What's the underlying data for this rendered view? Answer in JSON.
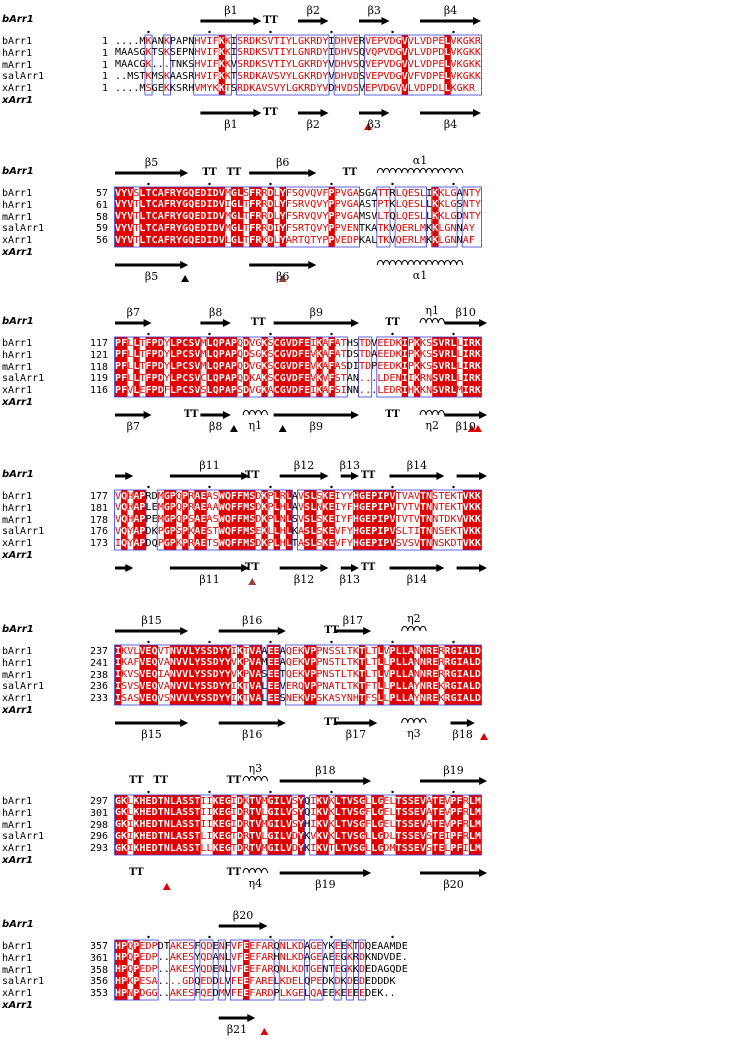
{
  "colors": {
    "identical_bg": "#e00000",
    "similar_text": "#e00000",
    "box_border": "#3a3ad8",
    "arrow": "#000000",
    "tri_red": "#e00000",
    "tri_brown": "#a0403a",
    "tri_black": "#000000"
  },
  "blocks": [
    {
      "start_col": 5,
      "top_header": "bArr1",
      "bottom_header": "xArr1",
      "rows": [
        {
          "name": "bArr1",
          "start": "1",
          "seq": "....MKANKPAPNHVIFKKISRDKSVTIYLGKRDYIDHVERVEPVDGVVLVDPELVKGKR"
        },
        {
          "name": "hArr1",
          "start": "1",
          "seq": "MAASGKTSKSEPNHVIFKKISRDKSVTIYLGNRDYIDHVSQVQPVDGVVLVDPDLVKGKK"
        },
        {
          "name": "mArr1",
          "start": "1",
          "seq": "MAACGK...TNKSHVIFKKVSRDKSVTIYLGKRDYVDHVSQVEPVDGVVLVDPELVKGKK"
        },
        {
          "name": "salArr1",
          "start": "1",
          "seq": "..MSTKMSKAASRHVIFKKTSRDKAVSVYLGKRDYVDHVDSVEPVDGVVFVDPELVKGKK"
        },
        {
          "name": "xArr1",
          "start": "1",
          "seq": "....MSGEKKSRHVMYKKTSRDKAVSVYLGKRDYVDHVDSVEPVDGVVLVDPDLLKGKR"
        }
      ],
      "top_ss": [
        {
          "label": "β1",
          "type": "arrow",
          "from": 14,
          "to": 24
        },
        {
          "label": "TT",
          "type": "turn",
          "at": 25
        },
        {
          "label": "β2",
          "type": "arrow",
          "from": 30,
          "to": 35
        },
        {
          "label": "β3",
          "type": "arrow",
          "from": 40,
          "to": 45
        },
        {
          "label": "β4",
          "type": "arrow",
          "from": 50,
          "to": 60
        }
      ],
      "bottom_ss": [
        {
          "label": "β1",
          "type": "arrow",
          "from": 14,
          "to": 24
        },
        {
          "label": "TT",
          "type": "turn",
          "at": 25
        },
        {
          "label": "β2",
          "type": "arrow",
          "from": 30,
          "to": 35
        },
        {
          "label": "β3",
          "type": "arrow",
          "from": 40,
          "to": 45
        },
        {
          "label": "β4",
          "type": "arrow",
          "from": 50,
          "to": 60
        }
      ],
      "markers": [
        {
          "at": 41,
          "color": "red"
        }
      ]
    },
    {
      "start_col": 0,
      "top_header": "bArr1",
      "bottom_header": "xArr1",
      "rows": [
        {
          "name": "bArr1",
          "start": "57",
          "seq": "VYVSLTCAFRYGQEDIDVMGLSFRRDLYFSQVQVFPPVGASGATTRLQESLIKKLGANTY"
        },
        {
          "name": "hArr1",
          "start": "61",
          "seq": "VYVTLTCAFRYGQEDIDVIGLTFRRDLYFSRVQVYPPVGAASTPTKLQESLLKKLGSNTY"
        },
        {
          "name": "mArr1",
          "start": "58",
          "seq": "VYVTLTCAFRYGQEDIDVMGLTFRRDLYFSRVQVYPPVGAMSVLTQLQESLLKKLGDNTY"
        },
        {
          "name": "salArr1",
          "start": "59",
          "seq": "VYVTLTCAFRYGQEDIDVMGLTFRRDIYFSRTQVYPPVENTKATKVQERLMKKLGNNAY"
        },
        {
          "name": "xArr1",
          "start": "56",
          "seq": "VYVTLTCAFRYGQEDIDVLGLTFRKDLYARTQTYPPVEDPKALTKVQERLMKKLGNNAF"
        }
      ],
      "top_ss": [
        {
          "label": "β5",
          "type": "arrow",
          "from": 0,
          "to": 12
        },
        {
          "label": "TT",
          "type": "turn",
          "at": 15
        },
        {
          "label": "TT",
          "type": "turn",
          "at": 19
        },
        {
          "label": "β6",
          "type": "arrow",
          "from": 22,
          "to": 33
        },
        {
          "label": "TT",
          "type": "turn",
          "at": 38
        },
        {
          "label": "α1",
          "type": "helix",
          "from": 43,
          "to": 57
        }
      ],
      "bottom_ss": [
        {
          "label": "β5",
          "type": "arrow",
          "from": 0,
          "to": 12
        },
        {
          "label": "β6",
          "type": "arrow",
          "from": 22,
          "to": 33
        },
        {
          "label": "α1",
          "type": "helix",
          "from": 43,
          "to": 57
        }
      ],
      "markers": [
        {
          "at": 11,
          "color": "black"
        },
        {
          "at": 27,
          "color": "brown"
        }
      ]
    },
    {
      "start_col": 0,
      "top_header": "bArr1",
      "bottom_header": "xArr1",
      "rows": [
        {
          "name": "bArr1",
          "start": "117",
          "seq": "PFLLTFPDYLPCSVMLQPAPQDVGKSCGVDFEIKAFATHSTDVEEDKIPKKSSVRLLIRK"
        },
        {
          "name": "hArr1",
          "start": "121",
          "seq": "PFLLTFPDYLPCSVMLQPAPQDSGKSCGVDFEVKAFATDSTDAEEDKIPKKSSVRLLIRK"
        },
        {
          "name": "mArr1",
          "start": "118",
          "seq": "PFLLTFPDYLPCSVMLQPAPQDVGKSCGVDFEVKAFASDITDPEEDKIPKKSSVRLLIRK"
        },
        {
          "name": "salArr1",
          "start": "119",
          "seq": "PFLLTFPDYLPCSVCLQPAPQDKAKSCGVDFEVKVFSTAN...LDENIIKRNSVRLLIRK"
        },
        {
          "name": "xArr1",
          "start": "116",
          "seq": "PFVLEFPDFLPCSVSLQPAPSDVGKACGVDFEIKAFSINN...LEDRIHKKNSVRLMIRK"
        }
      ],
      "top_ss": [
        {
          "label": "β7",
          "type": "arrow",
          "from": 0,
          "to": 6
        },
        {
          "label": "β8",
          "type": "arrow",
          "from": 14,
          "to": 19
        },
        {
          "label": "TT",
          "type": "turn",
          "at": 23
        },
        {
          "label": "β9",
          "type": "arrow",
          "from": 26,
          "to": 40
        },
        {
          "label": "TT",
          "type": "turn",
          "at": 45
        },
        {
          "label": "η1",
          "type": "helix",
          "from": 50,
          "to": 54
        },
        {
          "label": "β10",
          "type": "arrow",
          "from": 54,
          "to": 61
        }
      ],
      "bottom_ss": [
        {
          "label": "β7",
          "type": "arrow",
          "from": 0,
          "to": 6
        },
        {
          "label": "TT",
          "type": "turn",
          "at": 12
        },
        {
          "label": "β8",
          "type": "arrow",
          "from": 14,
          "to": 19
        },
        {
          "label": "η1",
          "type": "helix",
          "from": 21,
          "to": 25
        },
        {
          "label": "β9",
          "type": "arrow",
          "from": 26,
          "to": 40
        },
        {
          "label": "TT",
          "type": "turn",
          "at": 45
        },
        {
          "label": "η2",
          "type": "helix",
          "from": 50,
          "to": 54
        },
        {
          "label": "β10",
          "type": "arrow",
          "from": 54,
          "to": 61
        }
      ],
      "markers": [
        {
          "at": 19,
          "color": "black"
        },
        {
          "at": 27,
          "color": "black"
        },
        {
          "at": 58,
          "color": "red"
        },
        {
          "at": 59,
          "color": "red"
        }
      ]
    },
    {
      "start_col": 0,
      "top_header": "bArr1",
      "bottom_header": "xArr1",
      "rows": [
        {
          "name": "bArr1",
          "start": "177",
          "seq": "VQHAPRDMGPQPRAEASWQFFMSDKPLRLAVSLSKEIYYHGEPIPVTVAVTNSTEKTVKK"
        },
        {
          "name": "hArr1",
          "start": "181",
          "seq": "VQHAPLEMGPQPRAEAAWQFFMSDKPLHLAVSLNKEIYFHGEPIPVTVTVTNNTEKTVKK"
        },
        {
          "name": "mArr1",
          "start": "178",
          "seq": "VQHAPPEMGPQPSAEASWQFFMSDKPLNLSVSLSKEIYFHGEPIPVTVTVTNNTDKVVKK"
        },
        {
          "name": "salArr1",
          "start": "176",
          "seq": "VQYAPDKPGPSPKAESTWQFFMSEKLLHLKASLSKEVFYHGEPIPVSLTITNNSEKTVKK"
        },
        {
          "name": "xArr1",
          "start": "173",
          "seq": "IQYAPDQPGPKPRAETSWQFFMSDKPLHLTASLSKEVFYHGEPIPVSVSVTNNSKDTVKK"
        }
      ],
      "top_ss": [
        {
          "label": "",
          "type": "arrow",
          "from": 0,
          "to": 3
        },
        {
          "label": "β11",
          "type": "arrow",
          "from": 9,
          "to": 22
        },
        {
          "label": "TT",
          "type": "turn",
          "at": 22
        },
        {
          "label": "β12",
          "type": "arrow",
          "from": 27,
          "to": 35
        },
        {
          "label": "β13",
          "type": "arrow",
          "from": 37,
          "to": 40
        },
        {
          "label": "TT",
          "type": "turn",
          "at": 41
        },
        {
          "label": "β14",
          "type": "arrow",
          "from": 45,
          "to": 54
        },
        {
          "label": "",
          "type": "arrow",
          "from": 56,
          "to": 61
        }
      ],
      "bottom_ss": [
        {
          "label": "",
          "type": "arrow",
          "from": 0,
          "to": 3
        },
        {
          "label": "β11",
          "type": "arrow",
          "from": 9,
          "to": 22
        },
        {
          "label": "TT",
          "type": "turn",
          "at": 22
        },
        {
          "label": "β12",
          "type": "arrow",
          "from": 27,
          "to": 35
        },
        {
          "label": "β13",
          "type": "arrow",
          "from": 37,
          "to": 40
        },
        {
          "label": "TT",
          "type": "turn",
          "at": 41
        },
        {
          "label": "β14",
          "type": "arrow",
          "from": 45,
          "to": 54
        },
        {
          "label": "",
          "type": "arrow",
          "from": 56,
          "to": 61
        }
      ],
      "markers": [
        {
          "at": 22,
          "color": "brown"
        }
      ]
    },
    {
      "start_col": 0,
      "top_header": "bArr1",
      "bottom_header": "xArr1",
      "rows": [
        {
          "name": "bArr1",
          "start": "237",
          "seq": "IKVLVEQVTNVVLYSSDYYIKTVAAEEAQEKVPPNSSLTKTLTLVPLLANNRERRGIALD"
        },
        {
          "name": "hArr1",
          "start": "241",
          "seq": "IKAFVEQVANVVLYSSDYYVKPVAMEEAQEKVPPNSTLTKTLTLLPLLANNRERRGIALD"
        },
        {
          "name": "mArr1",
          "start": "238",
          "seq": "IKVSVEQIANVVLYSSDYYVKPVASEETQEKVPPNSTLTKTLTLVPLLANNRERRGIALD"
        },
        {
          "name": "salArr1",
          "start": "236",
          "seq": "ISVSVEQVANVVLYSSDYYIKTVALEEVERQVPPNATLTKTFTLLPLLAYNREKRGIALD"
        },
        {
          "name": "xArr1",
          "start": "233",
          "seq": "ISASVEQVSNVVLYSSDYYIKTVALEESNEKVPSKASYNHTFSLLPLLAYNREKRGIALD"
        }
      ],
      "top_ss": [
        {
          "label": "β15",
          "type": "arrow",
          "from": 0,
          "to": 12
        },
        {
          "label": "β16",
          "type": "arrow",
          "from": 17,
          "to": 28
        },
        {
          "label": "TT",
          "type": "turn",
          "at": 35
        },
        {
          "label": "β17",
          "type": "arrow",
          "from": 36,
          "to": 42
        },
        {
          "label": "η2",
          "type": "helix",
          "from": 47,
          "to": 51
        }
      ],
      "bottom_ss": [
        {
          "label": "β15",
          "type": "arrow",
          "from": 0,
          "to": 12
        },
        {
          "label": "β16",
          "type": "arrow",
          "from": 17,
          "to": 28
        },
        {
          "label": "TT",
          "type": "turn",
          "at": 35
        },
        {
          "label": "β17",
          "type": "arrow",
          "from": 36,
          "to": 43
        },
        {
          "label": "η3",
          "type": "helix",
          "from": 47,
          "to": 51
        },
        {
          "label": "β18",
          "type": "arrow",
          "from": 55,
          "to": 59
        }
      ],
      "markers": [
        {
          "at": 60,
          "color": "red"
        }
      ]
    },
    {
      "start_col": 0,
      "top_header": "",
      "bottom_header": "xArr1",
      "rows": [
        {
          "name": "bArr1",
          "start": "297",
          "seq": "GKLKHEDTNLASSTIIKEGIDKTVMGILVSYQIKVKLTVSGLLGELTSSEVATEVPFRLM"
        },
        {
          "name": "hArr1",
          "start": "301",
          "seq": "GKLKHEDTNLASSTIIKEGIDRTVLGILVSYQIKVKLTVSGFLGELTSSEVATEVPFRLM"
        },
        {
          "name": "mArr1",
          "start": "298",
          "seq": "GKIKHEDTNLASSTIIKEGIDRTVMGILVSYHIKVKLTVSGFLGELTSSEVATEVPFRLM"
        },
        {
          "name": "salArr1",
          "start": "296",
          "seq": "GKIKHEDTNLASSTLIKEGTDRTVLGILVDYKVKVKLTVSGLLGDLTSSEVSTEIPFRLM"
        },
        {
          "name": "xArr1",
          "start": "293",
          "seq": "GKIKHEDTNLASSTLLKEGTDRTVMGILVDYKIKVTLTVSGLLGDMTSSEVSTELPFILM"
        }
      ],
      "top_ss": [
        {
          "label": "TT",
          "type": "turn",
          "at": 3
        },
        {
          "label": "TT",
          "type": "turn",
          "at": 7
        },
        {
          "label": "TT",
          "type": "turn",
          "at": 19
        },
        {
          "label": "η3",
          "type": "helix",
          "from": 21,
          "to": 25
        },
        {
          "label": "β18",
          "type": "arrow",
          "from": 27,
          "to": 42
        },
        {
          "label": "β19",
          "type": "arrow",
          "from": 50,
          "to": 61
        }
      ],
      "bottom_ss": [
        {
          "label": "TT",
          "type": "turn",
          "at": 3
        },
        {
          "label": "TT",
          "type": "turn",
          "at": 19
        },
        {
          "label": "η4",
          "type": "helix",
          "from": 21,
          "to": 25
        },
        {
          "label": "β19",
          "type": "arrow",
          "from": 27,
          "to": 42
        },
        {
          "label": "β20",
          "type": "arrow",
          "from": 50,
          "to": 61
        }
      ],
      "markers": [
        {
          "at": 8,
          "color": "red"
        }
      ]
    },
    {
      "start_col": 0,
      "top_header": "bArr1",
      "bottom_header": "xArr1",
      "rows": [
        {
          "name": "bArr1",
          "start": "357",
          "seq": "HPQPEDPDTAKESFQDENFVFEEFARQNLKDAGEYKEEKTDQEAAMDE"
        },
        {
          "name": "hArr1",
          "start": "361",
          "seq": "HPQPEDP..AKESYQDANLVFEEFARHNLKDAGEAEEGKRDKNDVDE."
        },
        {
          "name": "mArr1",
          "start": "358",
          "seq": "HPQPEDP..AKESYQDENLVFEEFARQNLKDTGENTEGKKDEDAGQDE"
        },
        {
          "name": "salArr1",
          "start": "356",
          "seq": "HPKPESA....GDQEDDLVFEEFARELKDELQPEDKDKDEDEDDDK"
        },
        {
          "name": "xArr1",
          "start": "353",
          "seq": "HPNPDGG..AKESFQEDMVFEEFARDPLKGELQAEEKEEEEDEK.."
        }
      ],
      "top_ss": [
        {
          "label": "β20",
          "type": "arrow",
          "from": 17,
          "to": 25
        }
      ],
      "bottom_ss": [
        {
          "label": "β21",
          "type": "arrow",
          "from": 17,
          "to": 23
        }
      ],
      "markers": [
        {
          "at": 24,
          "color": "red"
        }
      ]
    }
  ]
}
